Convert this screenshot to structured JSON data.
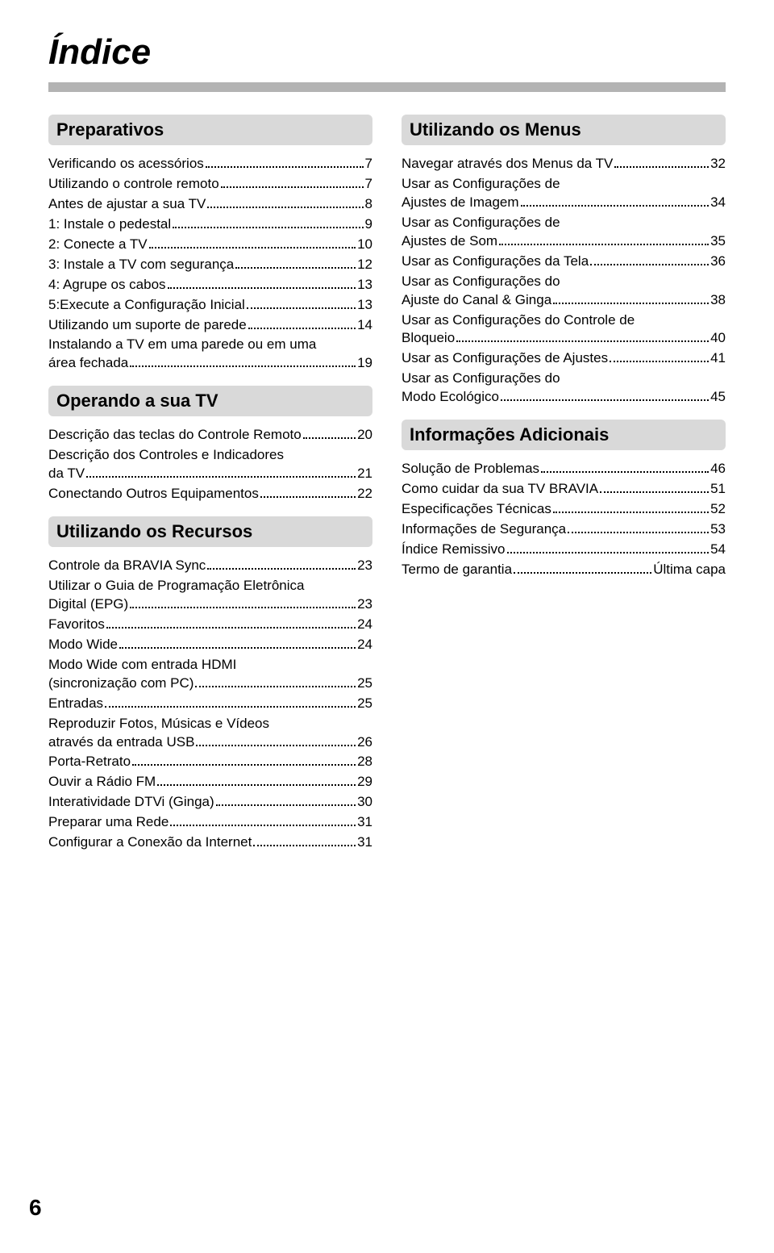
{
  "title": "Índice",
  "page_number": "6",
  "columns": {
    "left": {
      "sections": [
        {
          "heading": "Preparativos",
          "entries": [
            {
              "lines": [
                "Verificando os acessórios"
              ],
              "page": "7"
            },
            {
              "lines": [
                "Utilizando o controle remoto"
              ],
              "page": "7"
            },
            {
              "lines": [
                "Antes de ajustar a sua TV"
              ],
              "page": "8"
            },
            {
              "lines": [
                "1: Instale o pedestal"
              ],
              "page": "9"
            },
            {
              "lines": [
                "2: Conecte a TV"
              ],
              "page": "10"
            },
            {
              "lines": [
                "3: Instale a TV com segurança"
              ],
              "page": "12"
            },
            {
              "lines": [
                "4: Agrupe os cabos"
              ],
              "page": "13"
            },
            {
              "lines": [
                "5:Execute a Configuração Inicial"
              ],
              "page": "13"
            },
            {
              "lines": [
                "Utilizando um suporte de parede"
              ],
              "page": "14"
            },
            {
              "lines": [
                "Instalando a TV em uma parede ou em uma",
                "área fechada"
              ],
              "page": "19"
            }
          ]
        },
        {
          "heading": "Operando a sua TV",
          "entries": [
            {
              "lines": [
                "Descrição das teclas do Controle Remoto"
              ],
              "page": "20"
            },
            {
              "lines": [
                "Descrição dos Controles e Indicadores",
                "da TV"
              ],
              "page": "21"
            },
            {
              "lines": [
                "Conectando Outros Equipamentos"
              ],
              "page": "22"
            }
          ]
        },
        {
          "heading": "Utilizando os Recursos",
          "entries": [
            {
              "lines": [
                "Controle da BRAVIA Sync"
              ],
              "page": "23"
            },
            {
              "lines": [
                "Utilizar o Guia de Programação Eletrônica",
                "Digital (EPG)"
              ],
              "page": "23"
            },
            {
              "lines": [
                "Favoritos"
              ],
              "page": "24"
            },
            {
              "lines": [
                "Modo Wide"
              ],
              "page": "24"
            },
            {
              "lines": [
                "Modo Wide com entrada HDMI",
                "(sincronização com PC)"
              ],
              "page": "25"
            },
            {
              "lines": [
                "Entradas"
              ],
              "page": "25"
            },
            {
              "lines": [
                "Reproduzir Fotos, Músicas e Vídeos",
                "através da entrada USB"
              ],
              "page": "26"
            },
            {
              "lines": [
                "Porta-Retrato"
              ],
              "page": "28"
            },
            {
              "lines": [
                "Ouvir a Rádio FM"
              ],
              "page": "29"
            },
            {
              "lines": [
                "Interatividade DTVi (Ginga)"
              ],
              "page": "30"
            },
            {
              "lines": [
                "Preparar uma Rede"
              ],
              "page": "31"
            },
            {
              "lines": [
                "Configurar a Conexão da Internet"
              ],
              "page": "31"
            }
          ]
        }
      ]
    },
    "right": {
      "sections": [
        {
          "heading": "Utilizando os Menus",
          "entries": [
            {
              "lines": [
                "Navegar através dos Menus da TV"
              ],
              "page": "32"
            },
            {
              "lines": [
                "Usar as Configurações de",
                "Ajustes de Imagem"
              ],
              "page": "34"
            },
            {
              "lines": [
                "Usar as Configurações de",
                "Ajustes de Som"
              ],
              "page": "35"
            },
            {
              "lines": [
                "Usar as Configurações da Tela"
              ],
              "page": "36"
            },
            {
              "lines": [
                "Usar as Configurações do",
                "Ajuste do Canal & Ginga"
              ],
              "page": "38"
            },
            {
              "lines": [
                "Usar as Configurações do Controle de",
                "Bloqueio"
              ],
              "page": "40"
            },
            {
              "lines": [
                "Usar as Configurações de Ajustes"
              ],
              "page": "41"
            },
            {
              "lines": [
                "Usar as Configurações do",
                "Modo Ecológico"
              ],
              "page": "45"
            }
          ]
        },
        {
          "heading": "Informações Adicionais",
          "entries": [
            {
              "lines": [
                "Solução de Problemas"
              ],
              "page": "46"
            },
            {
              "lines": [
                "Como cuidar da sua TV BRAVIA"
              ],
              "page": "51"
            },
            {
              "lines": [
                "Especificações Técnicas"
              ],
              "page": "52"
            },
            {
              "lines": [
                "Informações de Segurança"
              ],
              "page": "53"
            },
            {
              "lines": [
                "Índice Remissivo"
              ],
              "page": "54"
            },
            {
              "lines": [
                "Termo de garantia"
              ],
              "page": "Última capa"
            }
          ]
        }
      ]
    }
  }
}
